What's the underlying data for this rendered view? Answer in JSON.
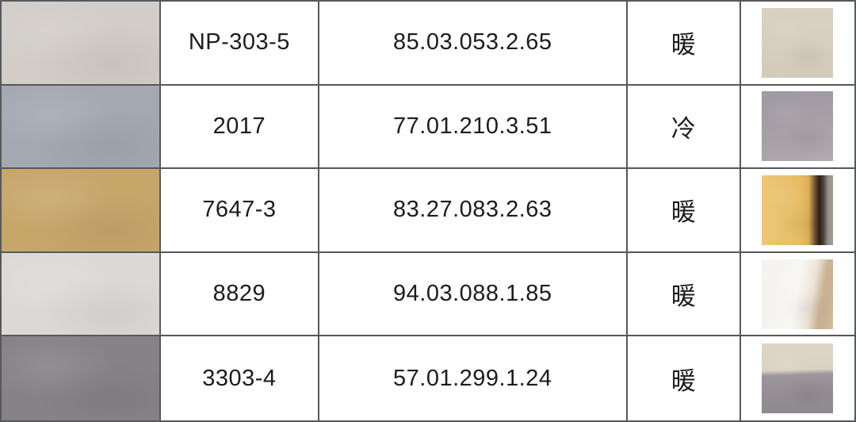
{
  "table_border_color": "#57585a",
  "chart_data": {
    "type": "table",
    "title": "",
    "columns": [
      "paint-swatch",
      "color-code",
      "color-notation",
      "tone",
      "material-photo"
    ],
    "rows": [
      {
        "code": "NP-303-5",
        "notation": "85.03.053.2.65",
        "tone": "暖",
        "swatch_color": "#d2cdc9",
        "photo_colors": [
          "#dbd1c2",
          "#d6ccbd"
        ],
        "photo_css": "linear-gradient(180deg, #dbd1c2 0%, #d8cebf 55%, #d5cbbc 100%)"
      },
      {
        "code": "2017",
        "notation": "77.01.210.3.51",
        "tone": "冷",
        "swatch_color": "#a4a8b1",
        "photo_colors": [
          "#9f99a2",
          "#a8a1a8",
          "#b1aaaf"
        ],
        "photo_css": "linear-gradient(165deg, #9f99a2 0%, #a49da5 35%, #a8a1a8 60%, #b1aaaf 100%)"
      },
      {
        "code": "7647-3",
        "notation": "83.27.083.2.63",
        "tone": "暖",
        "swatch_color": "#c7a66a",
        "photo_colors": [
          "#ecc877",
          "#e6bb63",
          "#2a1d12",
          "#a09a95"
        ],
        "photo_css": "linear-gradient(90deg, #ecc877 0%, #e8c06c 35%, #e6bb63 55%, #dcae58 66%, #6b4e2e 75%, #2a1d12 81%, #514540 87%, #958f8b 93%, #a09a95 100%)"
      },
      {
        "code": "8829",
        "notation": "94.03.088.1.85",
        "tone": "暖",
        "swatch_color": "#dcdad6",
        "photo_colors": [
          "#f4f3f0",
          "#ece3d6",
          "#c9b192",
          "#d3bd9f"
        ],
        "photo_css": "linear-gradient(100deg, #f4f3f0 0%, #f7f6f3 50%, #ece3d6 68%, #cbb494 80%, #c9b192 88%, #d3bd9f 100%)"
      },
      {
        "code": "3303-4",
        "notation": "57.01.299.1.24",
        "tone": "暖",
        "swatch_color": "#868286",
        "photo_colors": [
          "#ded5c7",
          "#dbd2c4",
          "#9d969d",
          "#8f8891"
        ],
        "photo_css": "linear-gradient(178deg, #ded5c7 0%, #dbd2c4 38%, #9d969d 45%, #948d94 72%, #8f8891 100%)"
      }
    ]
  }
}
